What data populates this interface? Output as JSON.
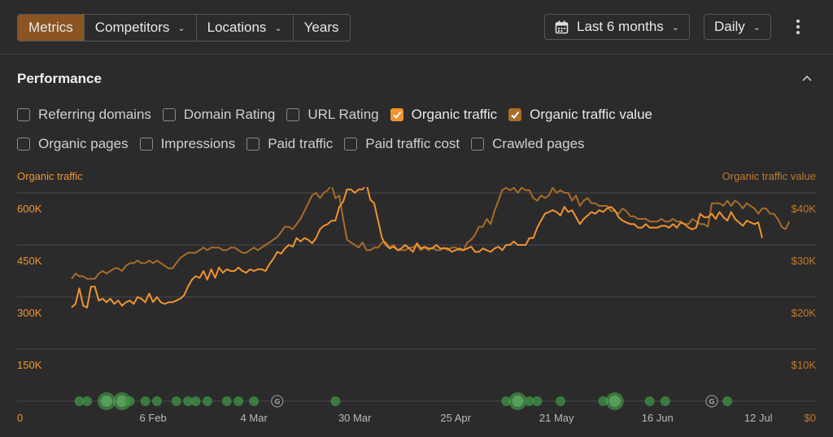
{
  "toolbar": {
    "tabs": [
      {
        "label": "Metrics",
        "active": true,
        "has_dropdown": false
      },
      {
        "label": "Competitors",
        "active": false,
        "has_dropdown": true
      },
      {
        "label": "Locations",
        "active": false,
        "has_dropdown": true
      },
      {
        "label": "Years",
        "active": false,
        "has_dropdown": false
      }
    ],
    "period_label": "Last 6 months",
    "interval_label": "Daily",
    "more_icon": "more-vertical-icon",
    "calendar_icon": "calendar-icon"
  },
  "panel": {
    "title": "Performance",
    "collapse_icon": "chevron-up-icon",
    "metrics_row1": [
      {
        "label": "Referring domains",
        "checked": false
      },
      {
        "label": "Domain Rating",
        "checked": false
      },
      {
        "label": "URL Rating",
        "checked": false
      },
      {
        "label": "Organic traffic",
        "checked": true,
        "color": "#f0942e"
      },
      {
        "label": "Organic traffic value",
        "checked": true,
        "color": "#a96c28"
      }
    ],
    "metrics_row2": [
      {
        "label": "Organic pages",
        "checked": false
      },
      {
        "label": "Impressions",
        "checked": false
      },
      {
        "label": "Paid traffic",
        "checked": false
      },
      {
        "label": "Paid traffic cost",
        "checked": false
      },
      {
        "label": "Crawled pages",
        "checked": false
      }
    ]
  },
  "colors": {
    "accent": "#8a5522",
    "organic_traffic": "#f0942e",
    "organic_traffic_value": "#a96c28",
    "event_dot": "#4caf50"
  },
  "chart_data": {
    "type": "line",
    "left_axis_title": "Organic traffic",
    "right_axis_title": "Organic traffic value",
    "left_ticks": [
      "600K",
      "450K",
      "300K",
      "150K",
      "0"
    ],
    "right_ticks": [
      "$40K",
      "$30K",
      "$20K",
      "$10K",
      "$0"
    ],
    "ylim_left": [
      0,
      675000
    ],
    "ylim_right": [
      0,
      45000
    ],
    "x_ticks": [
      "6 Feb",
      "4 Mar",
      "30 Mar",
      "25 Apr",
      "21 May",
      "16 Jun",
      "12 Jul"
    ],
    "x_tick_index": [
      21,
      47,
      73,
      99,
      125,
      151,
      177
    ],
    "series": [
      {
        "name": "Organic traffic",
        "axis": "left",
        "color": "#f0942e",
        "values": [
          270000,
          280000,
          325000,
          275000,
          270000,
          330000,
          330000,
          290000,
          295000,
          285000,
          295000,
          280000,
          290000,
          275000,
          285000,
          290000,
          280000,
          300000,
          295000,
          285000,
          310000,
          285000,
          300000,
          285000,
          280000,
          285000,
          285000,
          290000,
          295000,
          305000,
          330000,
          350000,
          360000,
          355000,
          375000,
          350000,
          380000,
          355000,
          385000,
          370000,
          380000,
          375000,
          375000,
          385000,
          375000,
          370000,
          380000,
          375000,
          380000,
          380000,
          375000,
          395000,
          410000,
          430000,
          425000,
          440000,
          450000,
          445000,
          470000,
          460000,
          470000,
          465000,
          455000,
          470000,
          495000,
          505000,
          510000,
          520000,
          520000,
          560000,
          575000,
          610000,
          610000,
          600000,
          610000,
          610000,
          625000,
          580000,
          570000,
          520000,
          470000,
          450000,
          440000,
          445000,
          435000,
          440000,
          450000,
          440000,
          430000,
          455000,
          440000,
          445000,
          440000,
          440000,
          450000,
          440000,
          440000,
          440000,
          430000,
          435000,
          440000,
          435000,
          440000,
          445000,
          430000,
          430000,
          440000,
          435000,
          430000,
          440000,
          445000,
          435000,
          450000,
          450000,
          460000,
          450000,
          450000,
          450000,
          470000,
          470000,
          500000,
          520000,
          540000,
          545000,
          550000,
          545000,
          535000,
          560000,
          545000,
          550000,
          530000,
          510000,
          525000,
          535000,
          545000,
          540000,
          550000,
          545000,
          555000,
          560000,
          550000,
          530000,
          520000,
          515000,
          510000,
          510000,
          500000,
          500000,
          510000,
          500000,
          500000,
          500000,
          505000,
          505000,
          500000,
          510000,
          500000,
          515000,
          510000,
          500000,
          495000,
          500000,
          540000,
          530000,
          530000,
          540000,
          525000,
          545000,
          530000,
          520000,
          545000,
          525000,
          515000,
          505000,
          520000,
          515000,
          510000,
          515000,
          470000
        ]
      },
      {
        "name": "Organic traffic value",
        "axis": "right",
        "color": "#a96c28",
        "values": [
          23500,
          24500,
          24000,
          24000,
          23500,
          23500,
          23500,
          24500,
          25000,
          24500,
          25000,
          25500,
          25500,
          25000,
          26000,
          26500,
          26500,
          27000,
          26500,
          26500,
          27000,
          26500,
          27000,
          26500,
          26000,
          25500,
          25500,
          26500,
          27500,
          28000,
          28500,
          28500,
          28500,
          29000,
          29500,
          29000,
          29500,
          29500,
          29500,
          29000,
          29000,
          29500,
          29500,
          29000,
          28500,
          28500,
          29000,
          29500,
          29000,
          29500,
          30000,
          30500,
          31000,
          31500,
          32500,
          33500,
          33500,
          33000,
          34000,
          35000,
          36500,
          38000,
          39500,
          40000,
          39000,
          40000,
          40500,
          41500,
          39000,
          39500,
          35000,
          31000,
          30500,
          30000,
          29500,
          30500,
          29000,
          29000,
          29500,
          29500,
          30500,
          30500,
          29500,
          30000,
          29000,
          29000,
          29000,
          29500,
          29500,
          30000,
          29000,
          29500,
          29000,
          29500,
          29000,
          29000,
          29500,
          29000,
          29500,
          29500,
          29000,
          29000,
          30500,
          31000,
          32000,
          33500,
          33500,
          35000,
          34000,
          36500,
          38500,
          40500,
          41000,
          40500,
          41000,
          40000,
          41000,
          40500,
          40500,
          39000,
          38500,
          39500,
          39000,
          39500,
          41000,
          40000,
          40500,
          40000,
          40000,
          38500,
          39500,
          37500,
          38500,
          39000,
          38000,
          38000,
          37500,
          37500,
          37500,
          36500,
          36500,
          36000,
          37000,
          36500,
          35500,
          35500,
          35000,
          35000,
          35000,
          34500,
          34500,
          34500,
          35000,
          34500,
          34500,
          35000,
          34500,
          34500,
          34000,
          34000,
          35000,
          34500,
          34000,
          34000,
          33500,
          38000,
          38000,
          38000,
          37500,
          38500,
          37500,
          38500,
          38000,
          37000,
          38000,
          37500,
          37000,
          36000,
          37000,
          37000,
          36000,
          36000,
          35000,
          33500,
          33000,
          34500
        ]
      }
    ],
    "events": [
      {
        "index": 2,
        "type": "dot"
      },
      {
        "index": 4,
        "type": "dot"
      },
      {
        "index": 9,
        "type": "big"
      },
      {
        "index": 13,
        "type": "big"
      },
      {
        "index": 15,
        "type": "dot"
      },
      {
        "index": 19,
        "type": "dot"
      },
      {
        "index": 22,
        "type": "dot"
      },
      {
        "index": 27,
        "type": "dot"
      },
      {
        "index": 30,
        "type": "dot"
      },
      {
        "index": 32,
        "type": "dot"
      },
      {
        "index": 35,
        "type": "dot"
      },
      {
        "index": 40,
        "type": "dot"
      },
      {
        "index": 43,
        "type": "dot"
      },
      {
        "index": 47,
        "type": "dot"
      },
      {
        "index": 53,
        "type": "google"
      },
      {
        "index": 68,
        "type": "dot"
      },
      {
        "index": 112,
        "type": "dot"
      },
      {
        "index": 115,
        "type": "big"
      },
      {
        "index": 118,
        "type": "dot"
      },
      {
        "index": 120,
        "type": "dot"
      },
      {
        "index": 126,
        "type": "dot"
      },
      {
        "index": 137,
        "type": "dot"
      },
      {
        "index": 140,
        "type": "big"
      },
      {
        "index": 149,
        "type": "dot"
      },
      {
        "index": 153,
        "type": "dot"
      },
      {
        "index": 165,
        "type": "google"
      },
      {
        "index": 169,
        "type": "dot"
      }
    ]
  }
}
